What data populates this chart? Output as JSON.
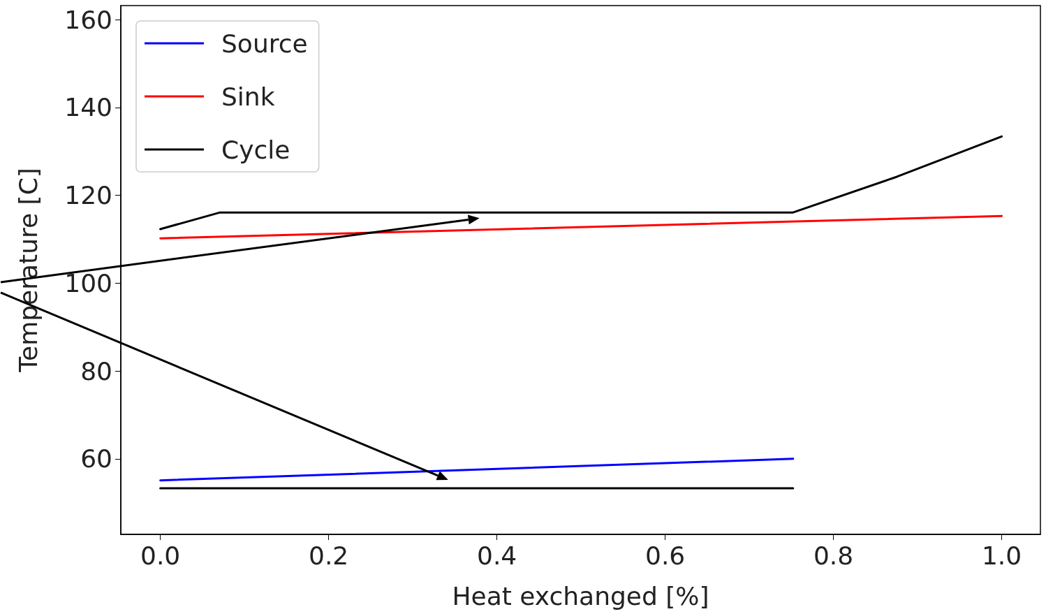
{
  "chart_data": {
    "type": "line",
    "xlabel": "Heat exchanged [%]",
    "ylabel": "Temperature [C]",
    "xlim": [
      -0.047,
      1.046
    ],
    "ylim": [
      42.8,
      163.2
    ],
    "xticks": [
      {
        "value": 0,
        "label": "0.0"
      },
      0.2,
      0.4,
      0.6,
      0.8,
      {
        "value": 1,
        "label": "1.0"
      }
    ],
    "yticks": [
      60,
      80,
      100,
      120,
      140,
      160
    ],
    "series": [
      {
        "name": "Source",
        "color": "#0000ff",
        "x": [
          0,
          0.752
        ],
        "values": [
          55.1,
          60.0
        ]
      },
      {
        "name": "Sink",
        "color": "#ff0000",
        "x": [
          0,
          1.0
        ],
        "values": [
          110.2,
          115.3
        ]
      },
      {
        "name": "Cycle",
        "color": "#000000",
        "x": [
          0,
          0.071,
          0.752,
          0.875,
          1.0
        ],
        "values": [
          112.3,
          116.1,
          116.1,
          124.2,
          133.4
        ]
      },
      {
        "color": "#000000",
        "x": [
          0,
          0.752
        ],
        "values": [
          53.3,
          53.3
        ]
      }
    ],
    "grid": false,
    "legend": "top left",
    "marker": "none",
    "line_style": "solid"
  }
}
